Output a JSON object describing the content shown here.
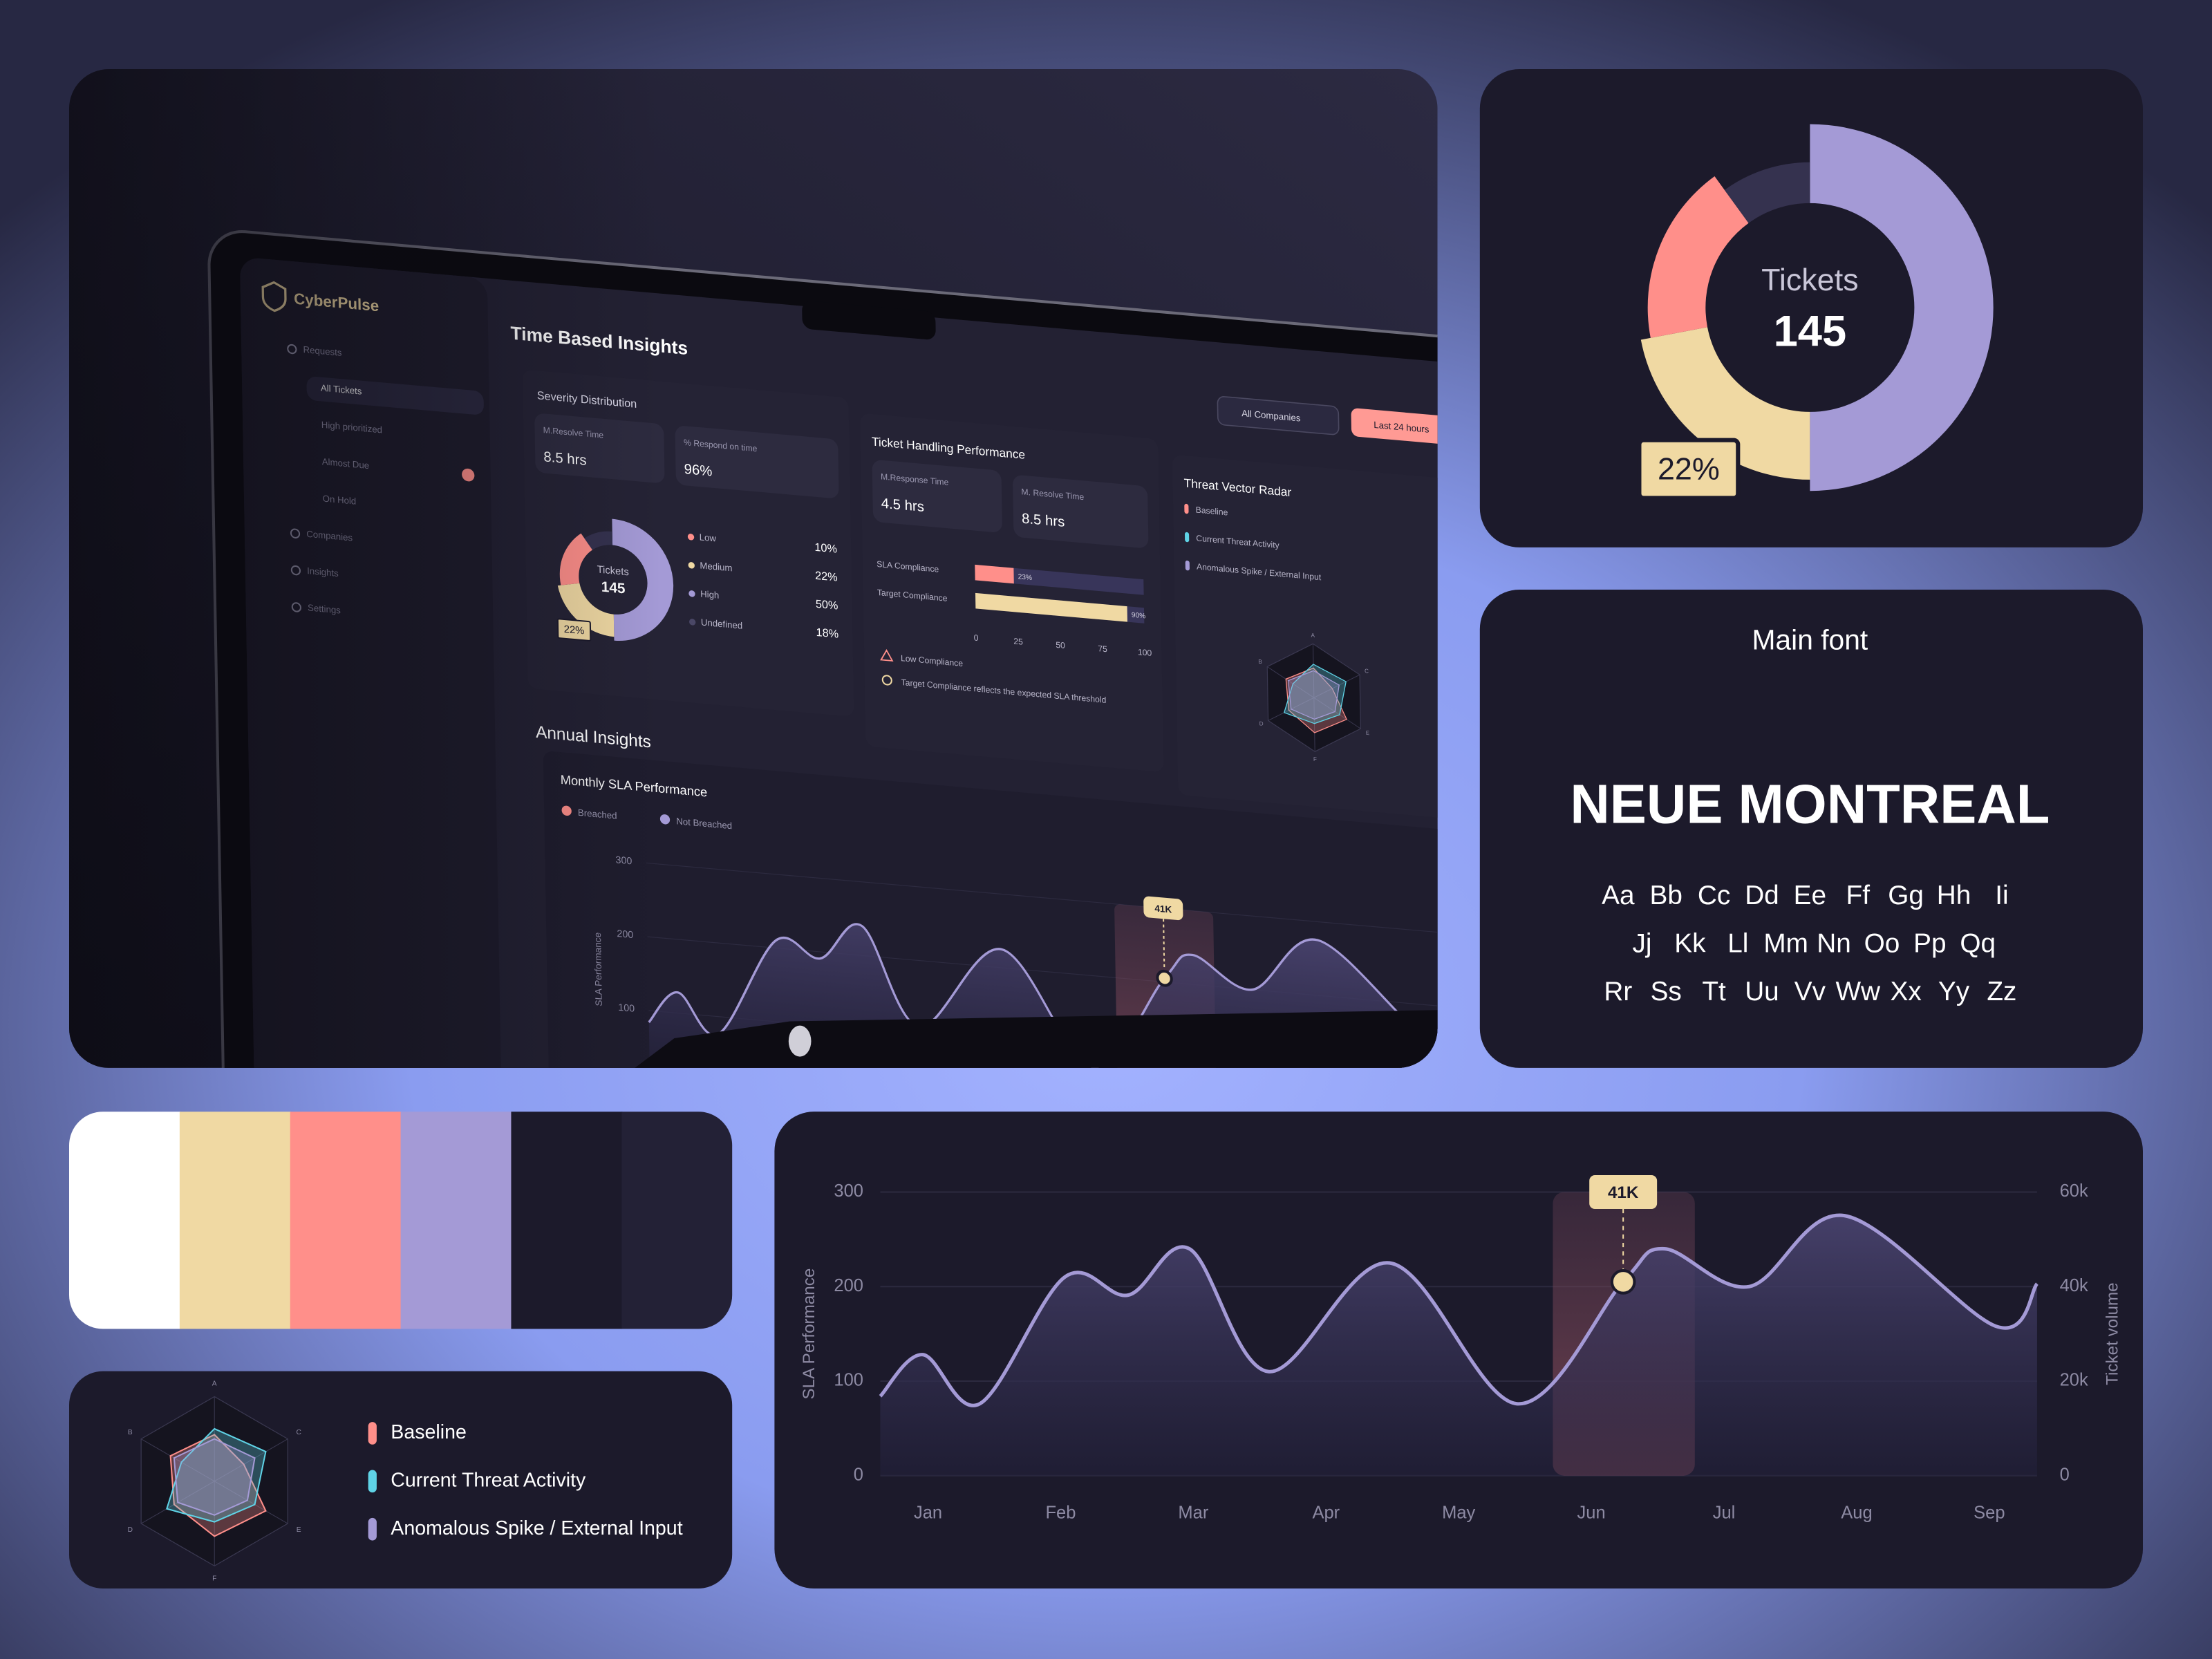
{
  "dashboard": {
    "brand": "CyberPulse",
    "nav": [
      "Requests",
      "All Tickets",
      "High prioritized",
      "Almost Due",
      "On Hold",
      "Companies",
      "Insights",
      "Settings"
    ],
    "heading": "Time Based Insights",
    "filters": [
      "All Companies",
      "Last 24 hours"
    ],
    "severity": {
      "title": "Severity Distribution",
      "stats": [
        {
          "label": "M.Resolve Time",
          "value": "8.5 hrs"
        },
        {
          "label": "% Respond on time",
          "value": "96%"
        }
      ],
      "legend": [
        {
          "name": "Low",
          "share": "10%"
        },
        {
          "name": "Medium",
          "share": "22%"
        },
        {
          "name": "High",
          "share": "50%"
        },
        {
          "name": "Undefined",
          "share": "18%"
        }
      ]
    },
    "ticket_handling": {
      "title": "Ticket Handling Performance",
      "stats": [
        {
          "label": "M.Response Time",
          "value": "4.5 hrs"
        },
        {
          "label": "M. Resolve Time",
          "value": "8.5 hrs"
        }
      ],
      "bars": {
        "type": "bar",
        "categories": [
          "SLA Compliance",
          "Target Compliance"
        ],
        "values": [
          23,
          90
        ],
        "value_labels": [
          "23%",
          "90%"
        ],
        "colors": [
          "#ff8f8a",
          "#f0d9a3"
        ],
        "xlim": [
          0,
          100
        ],
        "xticks": [
          0,
          25,
          50,
          75,
          100
        ]
      },
      "notes": [
        "Low Compliance",
        "Target Compliance reflects the expected SLA threshold"
      ]
    },
    "radar_title": "Threat Vector Radar",
    "annual_title": "Annual Insights",
    "monthly": {
      "title": "Monthly SLA Performance",
      "legend": [
        "Breached",
        "Not Breached"
      ]
    }
  },
  "chart_data": [
    {
      "type": "pie",
      "center_label": "Tickets",
      "center_value": 145,
      "values": [
        50,
        22,
        18,
        10
      ],
      "colors": [
        "#a49ad6",
        "#f0d9a3",
        "#ff8f8a",
        "#35324f"
      ],
      "value_labels": [
        null,
        "22%",
        null,
        null
      ]
    },
    {
      "type": "line",
      "x": [
        -0.36,
        -0.04,
        0.39,
        1.03,
        1.51,
        1.97,
        2.57,
        3.48,
        4.44,
        5.24,
        5.55,
        6.19,
        6.91,
        8.05,
        8.36
      ],
      "series": [
        {
          "color": "#a49ad6",
          "values": [
            84,
            128,
            76,
            210,
            191,
            240,
            110,
            225,
            76,
            205,
            240,
            200,
            275,
            158,
            203
          ]
        }
      ],
      "xlim": [
        -0.36,
        8.36
      ],
      "xticks": [
        {
          "value": 0,
          "label": "Jan"
        },
        {
          "value": 1,
          "label": "Feb"
        },
        {
          "value": 2,
          "label": "Mar"
        },
        {
          "value": 3,
          "label": "Apr"
        },
        {
          "value": 4,
          "label": "May"
        },
        {
          "value": 5,
          "label": "Jun"
        },
        {
          "value": 6,
          "label": "Jul"
        },
        {
          "value": 7,
          "label": "Aug"
        },
        {
          "value": 8,
          "label": "Sep"
        }
      ],
      "ylim": [
        0,
        300
      ],
      "yticks": [
        0,
        100,
        200,
        300
      ],
      "y2lim": [
        0,
        60000
      ],
      "y2ticks": [
        0,
        {
          "value": 20000,
          "label": "20k"
        },
        {
          "value": 40000,
          "label": "40k"
        },
        {
          "value": 60000,
          "label": "60k"
        }
      ],
      "ylabel": "SLA Performance",
      "y2label": "Ticket volume",
      "annotation": {
        "x": 5.24,
        "value": 41000,
        "label": "41K",
        "axis": "y2"
      },
      "highlight": [
        4.71,
        5.78
      ],
      "grid": true
    },
    {
      "type": "radar",
      "categories": [
        "A",
        "C",
        "E",
        "F",
        "D",
        "B"
      ],
      "ylim": [
        0,
        100
      ],
      "series": [
        {
          "name": "Baseline",
          "color": "#ff8f8a",
          "values": [
            55,
            40,
            70,
            65,
            55,
            60
          ]
        },
        {
          "name": "Current Threat Activity",
          "color": "#5fd3e6",
          "values": [
            62,
            70,
            55,
            48,
            65,
            45
          ]
        },
        {
          "name": "Anomalous Spike / External Input",
          "color": "#a49ad6",
          "values": [
            50,
            55,
            45,
            40,
            50,
            55
          ]
        }
      ]
    }
  ],
  "font_card": {
    "caption": "Main font",
    "name": "NEUE MONTREAL",
    "glyph_rows": [
      [
        "Aa",
        "Bb",
        "Cc",
        "Dd",
        "Ee",
        "Ff",
        "Gg",
        "Hh",
        "Ii"
      ],
      [
        "Jj",
        "Kk",
        "Ll",
        "Mm",
        "Nn",
        "Oo",
        "Pp",
        "Qq"
      ],
      [
        "Rr",
        "Ss",
        "Tt",
        "Uu",
        "Vv",
        "Ww",
        "Xx",
        "Yy",
        "Zz"
      ]
    ]
  },
  "palette": [
    "#ffffff",
    "#f0d9a3",
    "#ff8f8a",
    "#a49ad6",
    "#1c1a2b",
    "#232136"
  ]
}
